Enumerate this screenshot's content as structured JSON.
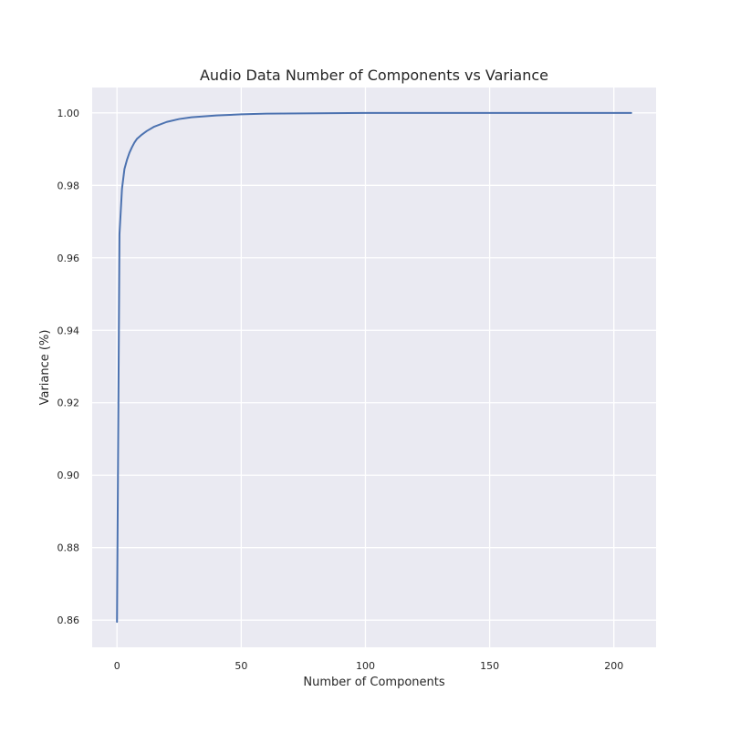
{
  "chart_data": {
    "type": "line",
    "title": "Audio Data Number of Components vs Variance",
    "xlabel": "Number of Components",
    "ylabel": "Variance (%)",
    "xlim": [
      -10,
      217
    ],
    "ylim": [
      0.8525,
      1.007
    ],
    "x_ticks": [
      0,
      50,
      100,
      150,
      200
    ],
    "x_tick_labels": [
      "0",
      "50",
      "100",
      "150",
      "200"
    ],
    "y_ticks": [
      0.86,
      0.88,
      0.9,
      0.92,
      0.94,
      0.96,
      0.98,
      1.0
    ],
    "y_tick_labels": [
      "0.86",
      "0.88",
      "0.90",
      "0.92",
      "0.94",
      "0.96",
      "0.98",
      "1.00"
    ],
    "grid": true,
    "series": [
      {
        "color": "#4c72b0",
        "x": [
          0,
          1,
          2,
          3,
          4,
          5,
          6,
          7,
          8,
          10,
          12,
          15,
          20,
          25,
          30,
          40,
          50,
          60,
          80,
          100,
          150,
          207
        ],
        "y": [
          0.8595,
          0.9665,
          0.979,
          0.9845,
          0.987,
          0.989,
          0.9905,
          0.9918,
          0.9928,
          0.994,
          0.995,
          0.9962,
          0.9975,
          0.9983,
          0.9988,
          0.9993,
          0.9996,
          0.9998,
          0.9999,
          1.0,
          1.0,
          1.0
        ]
      }
    ],
    "background_color": "#eaeaf2",
    "grid_color": "#ffffff"
  }
}
